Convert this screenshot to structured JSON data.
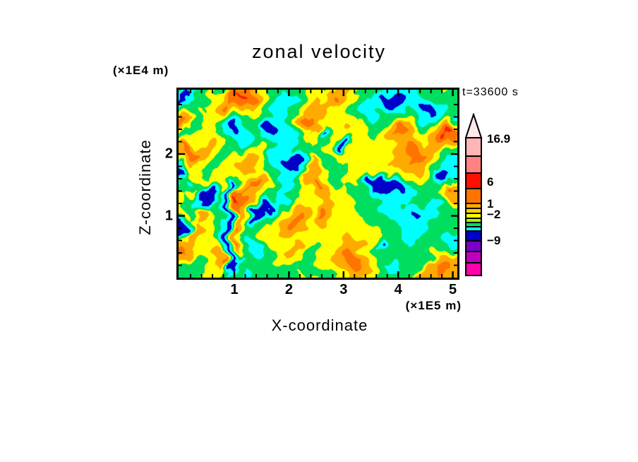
{
  "title": "zonal velocity",
  "timestamp": "t=33600 s",
  "axes": {
    "x": {
      "label": "X-coordinate",
      "unit": "(×1E5 m)",
      "ticks": [
        "1",
        "2",
        "3",
        "4",
        "5"
      ]
    },
    "y": {
      "label": "Z-coordinate",
      "unit": "(×1E4 m)",
      "ticks": [
        "2",
        "1"
      ]
    }
  },
  "colorbar": {
    "labels": [
      "16.9",
      "6",
      "1",
      "−2",
      "−9"
    ],
    "arrow_fill": "#FFE8E8",
    "segments": [
      {
        "color": "#FFB6B6",
        "h": 26
      },
      {
        "color": "#FF8282",
        "h": 24
      },
      {
        "color": "#FF0F00",
        "h": 22
      },
      {
        "color": "#FF7300",
        "h": 21
      },
      {
        "color": "#FFAA00",
        "h": 7
      },
      {
        "color": "#FFD200",
        "h": 7
      },
      {
        "color": "#FFFF00",
        "h": 7
      },
      {
        "color": "#96FF00",
        "h": 6
      },
      {
        "color": "#00E05C",
        "h": 6
      },
      {
        "color": "#00FFFF",
        "h": 6
      },
      {
        "color": "#0000C8",
        "h": 14
      },
      {
        "color": "#7A00C8",
        "h": 15
      },
      {
        "color": "#BE00BE",
        "h": 16
      },
      {
        "color": "#FF00AA",
        "h": 18
      }
    ]
  },
  "chart_data": {
    "type": "heatmap",
    "title": "zonal velocity",
    "xlabel": "X-coordinate",
    "x_unit": "×1E5 m",
    "ylabel": "Z-coordinate",
    "y_unit": "×1E4 m",
    "x_range": [
      0,
      5.1
    ],
    "y_range": [
      0,
      3.05
    ],
    "time_label": "t=33600 s",
    "colorbar_labeled_levels": [
      16.9,
      6,
      1,
      -2,
      -9
    ],
    "palette": [
      "#0000C8",
      "#00FFFF",
      "#00DE5F",
      "#FFFF00",
      "#FFAA00",
      "#FF7300",
      "#FF1E00"
    ],
    "palette_meaning": [
      "navy (strong negative)",
      "cyan",
      "green (near zero)",
      "yellow",
      "amber",
      "orange",
      "red (strong positive)"
    ],
    "grid_encoding": "rows top-to-bottom; each char is a palette index 0-6",
    "grid": [
      "2112232234543222223323443222211111222232",
      "2002233456543221123334543322100001122222",
      "0022334554432111223434433221110011001222",
      "2223345433332111224444332211221121101122",
      "4422333211222211245443333211222222111221",
      "5422332101220011245533343322234543223442",
      "4223332101120011124402333332234554334565",
      "2233443211221111123322300333333444345654",
      "4534432222332211122323303333333455444432",
      "4554332233443111001222333333334455543221",
      "3443322334443110001422233333334445443211",
      "0233222334433211014432223333333444432211",
      "0033233323332211144433223330003333330012",
      "1223333034554321124454223320000122221044",
      "2330023055443221223344332221000011222454",
      "3220002065543211223343332222111112222244",
      "3222002054430022333354333222211121121122",
      "3324422043000233444354333322211110111222",
      "0234321043002234454344333332221111112222",
      "0043321053022334554333333333222111122222",
      "0244321043223334443333333333222211122211",
      "4443332052123333333233344443322221222211",
      "5543334042112233442233344433202222222222",
      "4433345032112234432233345543222222224444",
      "2222344002222223332233445543221222224554",
      "2222333202222222222223344443211222244544",
      "2222333222122222233322334433222222444444"
    ]
  }
}
